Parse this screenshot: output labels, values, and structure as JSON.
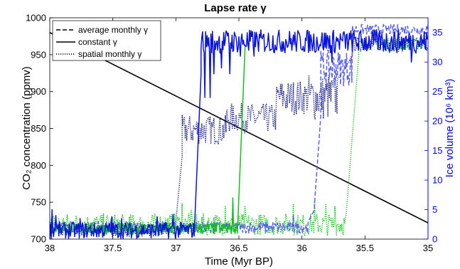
{
  "chart_data": {
    "type": "line",
    "title": "Lapse rate γ",
    "xlabel": "Time (Myr BP)",
    "ylabel_left": "CO₂ concentration (ppmv)",
    "ylabel_right": "Ice volume (10⁶ km³)",
    "xlim": [
      38,
      35
    ],
    "x_reversed": true,
    "ylim_left": [
      700,
      1000
    ],
    "ylim_right": [
      0,
      37.5
    ],
    "x_ticks": [
      38,
      37.5,
      37,
      36.5,
      36,
      35.5,
      35
    ],
    "x_tick_labels": [
      "38",
      "37.5",
      "37",
      "36.5",
      "36",
      "35.5",
      "35"
    ],
    "y_left_ticks": [
      700,
      750,
      800,
      850,
      900,
      950,
      1000
    ],
    "y_left_tick_labels": [
      "700",
      "750",
      "800",
      "850",
      "900",
      "950",
      "1000"
    ],
    "y_right_ticks": [
      0,
      5,
      10,
      15,
      20,
      25,
      30,
      35
    ],
    "y_right_tick_labels": [
      "0",
      "5",
      "10",
      "15",
      "20",
      "25",
      "30",
      "35"
    ],
    "grid": false,
    "legend_position": "top-left",
    "legend": [
      {
        "label": "average monthly γ",
        "style": "dashed"
      },
      {
        "label": "constant γ",
        "style": "solid"
      },
      {
        "label": "spatial monthly γ",
        "style": "dotted"
      }
    ],
    "colors": {
      "co2": "#000000",
      "right_axis": "#0000ee",
      "blue": "#0a14d8",
      "green": "#11c11a",
      "light_blue": "#5a60f0",
      "navy": "#1a1f80"
    },
    "co2_line": {
      "x": [
        38,
        35
      ],
      "y": [
        980,
        722
      ],
      "axis": "left"
    },
    "series": [
      {
        "legend_ref": "constant γ",
        "color_key": "blue",
        "style": "solid",
        "axis": "right",
        "seg": [
          {
            "x0": 38,
            "x1": 36.85,
            "base": 1.5,
            "amp": 1.4,
            "spikes": [
              [
                37.98,
                5
              ],
              [
                37.95,
                4
              ],
              [
                37.76,
                3.5
              ],
              [
                37.51,
                3.8
              ],
              [
                37.43,
                3.5
              ],
              [
                37.15,
                3.8
              ],
              [
                37.02,
                4.2
              ]
            ]
          },
          {
            "x0": 36.85,
            "x1": 36.8,
            "ramp": [
              3,
              28
            ]
          },
          {
            "x0": 36.8,
            "x1": 35,
            "base": 33.5,
            "amp": 2.0,
            "spikes": [
              [
                36.77,
                24
              ],
              [
                36.73,
                24
              ],
              [
                36.7,
                28
              ],
              [
                36.64,
                29
              ],
              [
                36.57,
                28
              ],
              [
                36.49,
                31
              ],
              [
                36.42,
                32
              ],
              [
                36.38,
                31
              ],
              [
                35.76,
                30
              ],
              [
                35.13,
                30
              ]
            ]
          }
        ]
      },
      {
        "legend_ref": "constant γ",
        "color_key": "green",
        "style": "solid",
        "axis": "right",
        "seg": [
          {
            "x0": 38,
            "x1": 36.51,
            "base": 1.8,
            "amp": 1.0,
            "spikes": [
              [
                36.55,
                7
              ]
            ]
          },
          {
            "x0": 36.51,
            "x1": 36.45,
            "ramp": [
              2,
              33
            ]
          }
        ]
      },
      {
        "legend_ref": "average monthly γ",
        "color_key": "light_blue",
        "style": "dashed",
        "axis": "right",
        "seg": [
          {
            "x0": 38,
            "x1": 35.95,
            "base": 2.0,
            "amp": 1.0,
            "spikes": [
              [
                36.07,
                4
              ]
            ]
          },
          {
            "x0": 35.95,
            "x1": 35.9,
            "ramp": [
              3,
              5
            ]
          },
          {
            "x0": 35.9,
            "x1": 35.85,
            "ramp": [
              6,
              21
            ]
          },
          {
            "x0": 35.85,
            "x1": 35.6,
            "base": 29,
            "amp": 3.0
          },
          {
            "x0": 35.6,
            "x1": 35,
            "base": 35.5,
            "amp": 0.9
          }
        ]
      },
      {
        "legend_ref": "average monthly γ",
        "color_key": "green",
        "style": "dotted",
        "axis": "right",
        "seg": [
          {
            "x0": 38,
            "x1": 35.65,
            "base": 2.5,
            "amp": 1.8,
            "spikes": [
              [
                36.95,
                6
              ],
              [
                36.88,
                5
              ],
              [
                36.61,
                5.5
              ],
              [
                36.45,
                5.5
              ],
              [
                36.07,
                6
              ],
              [
                35.98,
                0.5
              ],
              [
                35.9,
                6.5
              ],
              [
                35.81,
                6
              ],
              [
                35.74,
                5.5
              ]
            ]
          },
          {
            "x0": 35.65,
            "x1": 35.55,
            "ramp": [
              4,
              31
            ]
          },
          {
            "x0": 35.55,
            "x1": 35,
            "base": 33,
            "amp": 1.0
          }
        ]
      },
      {
        "legend_ref": "spatial monthly γ",
        "color_key": "navy",
        "style": "dotted",
        "axis": "right",
        "seg": [
          {
            "x0": 38,
            "x1": 37.0,
            "base": 1.5,
            "amp": 1.0
          },
          {
            "x0": 37.0,
            "x1": 36.95,
            "ramp": [
              3,
              14
            ]
          },
          {
            "x0": 36.95,
            "x1": 36.6,
            "base": 18.5,
            "amp": 2.5
          },
          {
            "x0": 36.6,
            "x1": 36.2,
            "base": 20.5,
            "amp": 2.5
          },
          {
            "x0": 36.2,
            "x1": 35.95,
            "base": 24,
            "amp": 3.0
          },
          {
            "x0": 35.95,
            "x1": 35.72,
            "base": 24,
            "amp": 4.0
          },
          {
            "x0": 35.72,
            "x1": 35.6,
            "ramp": [
              27,
              31
            ]
          },
          {
            "x0": 35.6,
            "x1": 35,
            "base": 33,
            "amp": 1.2
          }
        ]
      }
    ]
  }
}
